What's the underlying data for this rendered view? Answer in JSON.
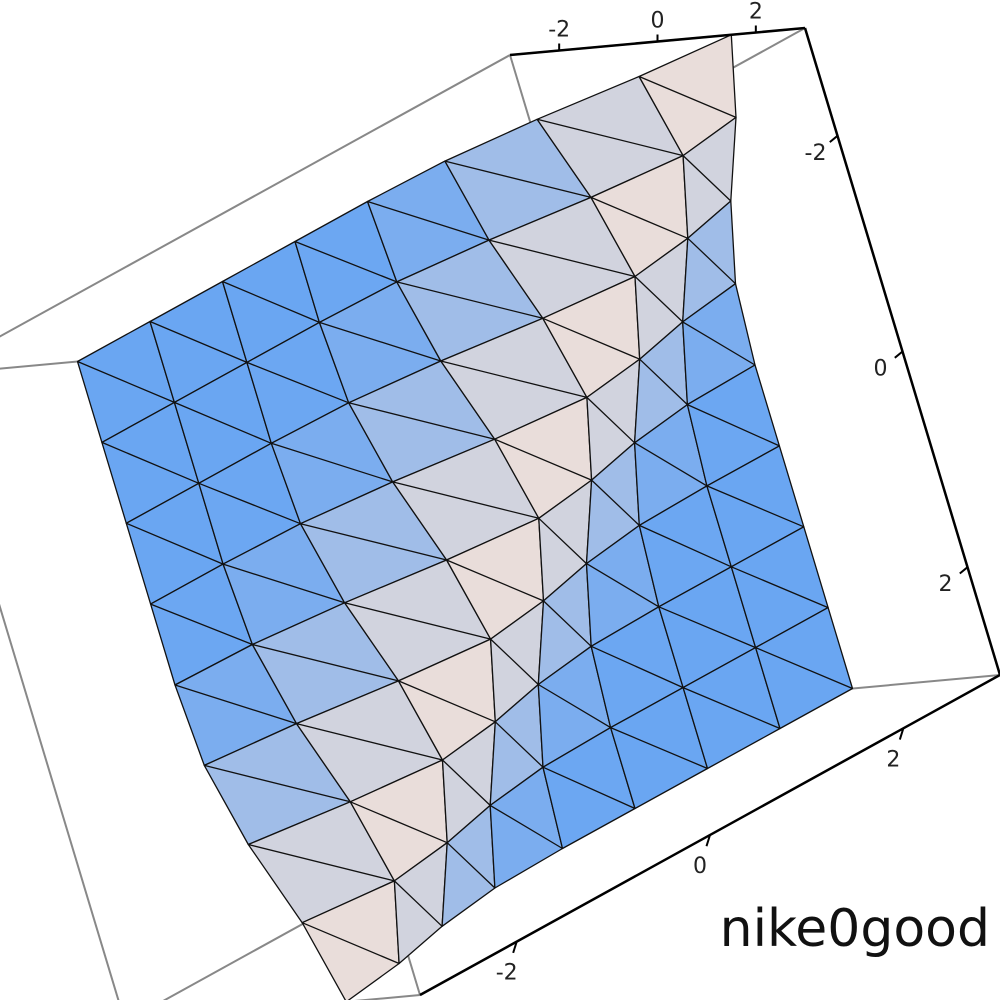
{
  "chart_data": {
    "type": "surface",
    "x": [
      -3,
      -2.25,
      -1.5,
      -0.75,
      0,
      0.75,
      1.5,
      2.25,
      3
    ],
    "y": [
      -3,
      -2.25,
      -1.5,
      -0.75,
      0,
      0.75,
      1.5,
      2.25,
      3
    ],
    "z": [
      [
        0,
        0,
        0,
        0,
        0,
        0.1,
        0.5,
        1.1,
        1.5
      ],
      [
        0,
        0,
        0,
        0,
        0.1,
        0.5,
        1.1,
        1.5,
        1.1
      ],
      [
        0,
        0,
        0,
        0.1,
        0.5,
        1.1,
        1.5,
        1.1,
        0.5
      ],
      [
        0,
        0,
        0.1,
        0.5,
        1.1,
        1.5,
        1.1,
        0.5,
        0.1
      ],
      [
        0,
        0.1,
        0.5,
        1.1,
        1.5,
        1.1,
        0.5,
        0.1,
        0
      ],
      [
        0.1,
        0.5,
        1.1,
        1.5,
        1.1,
        0.5,
        0.1,
        0,
        0
      ],
      [
        0.5,
        1.1,
        1.5,
        1.1,
        0.5,
        0.1,
        0,
        0,
        0
      ],
      [
        1.1,
        1.5,
        1.1,
        0.5,
        0.1,
        0,
        0,
        0,
        0
      ],
      [
        1.5,
        1.1,
        0.5,
        0.1,
        0,
        0,
        0,
        0,
        0
      ]
    ],
    "xlim": [
      -3,
      3
    ],
    "ylim": [
      -3,
      3
    ],
    "zlim": [
      -3,
      3
    ],
    "xticks": [
      -2,
      0,
      2
    ],
    "yticks": [
      -2,
      0,
      2
    ],
    "zticks": [
      -2,
      0,
      2
    ],
    "color": "#6aa6f2",
    "peak_color": "#fde6d6"
  },
  "watermark": "nike0good"
}
